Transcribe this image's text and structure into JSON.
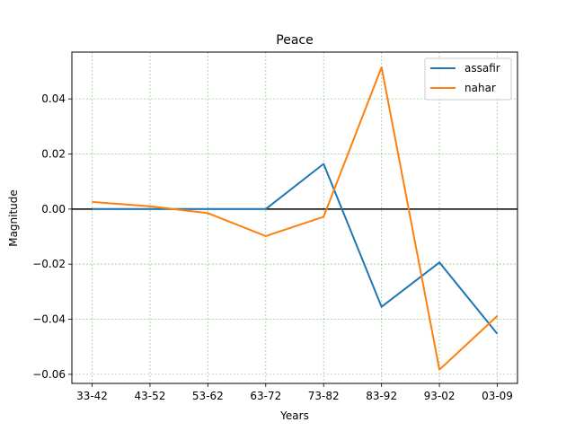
{
  "chart_data": {
    "type": "line",
    "title": "Peace",
    "xlabel": "Years",
    "ylabel": "Magnitude",
    "categories": [
      "33-42",
      "43-52",
      "53-62",
      "63-72",
      "73-82",
      "83-92",
      "93-02",
      "03-09"
    ],
    "series": [
      {
        "name": "assafir",
        "color": "#1f77b4",
        "values": [
          0.0,
          0.0,
          0.0,
          0.0,
          0.0164,
          -0.0355,
          -0.0194,
          -0.0453
        ]
      },
      {
        "name": "nahar",
        "color": "#ff7f0e",
        "values": [
          0.0026,
          0.001,
          -0.0015,
          -0.0098,
          -0.0028,
          0.0515,
          -0.0583,
          -0.0388
        ]
      }
    ],
    "yticks": [
      0.04,
      0.02,
      0.0,
      -0.02,
      -0.04,
      -0.06
    ],
    "ytick_labels": [
      "0.04",
      "0.02",
      "0.00",
      "−0.02",
      "−0.04",
      "−0.06"
    ],
    "ylim": [
      -0.0633,
      0.057
    ],
    "zero_line": true,
    "grid": true,
    "grid_color": "#2ca02c",
    "legend_position": "top-right"
  }
}
